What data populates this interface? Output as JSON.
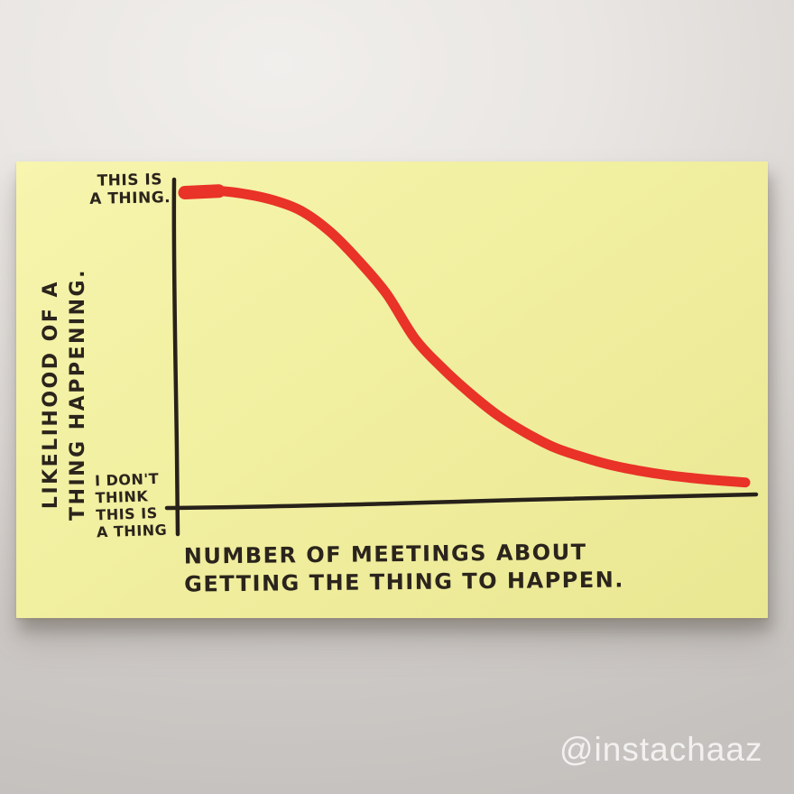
{
  "photo": {
    "watermark": "@instachaaz"
  },
  "note": {
    "note_color": "#f1ef9f",
    "ink_color": "#2b241c",
    "annotation_top": {
      "lines": [
        "THIS IS",
        "A THING."
      ]
    },
    "annotation_origin": {
      "lines": [
        "I DON'T",
        "THINK",
        "THIS IS",
        "A THING"
      ]
    },
    "y_axis_label": {
      "lines": [
        "LIKELIHOOD OF A",
        "THING HAPPENING."
      ]
    },
    "x_axis_label": {
      "lines": [
        "NUMBER OF MEETINGS ABOUT",
        "GETTING THE THING TO HAPPEN."
      ]
    }
  },
  "chart_data": {
    "type": "line",
    "title": "",
    "xlabel": "NUMBER OF MEETINGS ABOUT GETTING THE THING TO HAPPEN.",
    "ylabel": "LIKELIHOOD OF A THING HAPPENING.",
    "x_range": [
      0,
      1
    ],
    "y_range": [
      0,
      1
    ],
    "grid": false,
    "legend": false,
    "annotations": [
      {
        "position": "y-axis-top",
        "text": "THIS IS A THING."
      },
      {
        "position": "y-axis-bottom",
        "text": "I DON'T THINK THIS IS A THING"
      }
    ],
    "series": [
      {
        "name": "likelihood of a thing happening",
        "color": "#e93228",
        "points": [
          [
            0.0,
            0.99
          ],
          [
            0.06,
            0.995
          ],
          [
            0.11,
            0.985
          ],
          [
            0.16,
            0.965
          ],
          [
            0.21,
            0.93
          ],
          [
            0.26,
            0.865
          ],
          [
            0.31,
            0.775
          ],
          [
            0.36,
            0.67
          ],
          [
            0.41,
            0.53
          ],
          [
            0.46,
            0.435
          ],
          [
            0.51,
            0.355
          ],
          [
            0.56,
            0.285
          ],
          [
            0.61,
            0.23
          ],
          [
            0.66,
            0.185
          ],
          [
            0.71,
            0.155
          ],
          [
            0.76,
            0.13
          ],
          [
            0.81,
            0.112
          ],
          [
            0.86,
            0.098
          ],
          [
            0.91,
            0.088
          ],
          [
            0.96,
            0.08
          ],
          [
            1.0,
            0.075
          ]
        ]
      }
    ]
  }
}
